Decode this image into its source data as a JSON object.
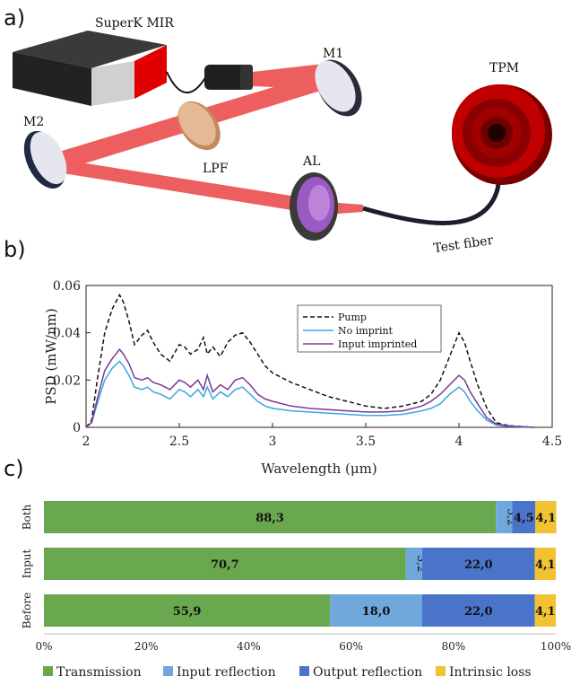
{
  "panel_a": {
    "letter": "a)",
    "labels": {
      "source": "SuperK MIR",
      "m1": "M1",
      "m2": "M2",
      "lpf": "LPF",
      "al": "AL",
      "tpm": "TPM",
      "fiber": "Test fiber"
    },
    "colors": {
      "beam": "#e82a2a",
      "source_body": "#2b2b2b",
      "source_red": "#e00000",
      "tpm": "#c00000"
    }
  },
  "panel_b": {
    "letter": "b)"
  },
  "panel_c": {
    "letter": "c)"
  },
  "chart_data": [
    {
      "type": "line",
      "xlabel": "Wavelength (μm)",
      "ylabel": "PSD (mW/nm)",
      "xlim": [
        2,
        4.5
      ],
      "ylim": [
        0,
        0.06
      ],
      "xticks": [
        "2",
        "2.5",
        "3",
        "3.5",
        "4",
        "4.5"
      ],
      "yticks": [
        "0",
        "0.02",
        "0.04",
        "0.06"
      ],
      "legend_position": "upper-middle",
      "series": [
        {
          "name": "Pump",
          "color": "#111111",
          "style": "dashed",
          "x": [
            2.0,
            2.03,
            2.06,
            2.1,
            2.14,
            2.18,
            2.2,
            2.23,
            2.26,
            2.3,
            2.33,
            2.36,
            2.4,
            2.45,
            2.5,
            2.53,
            2.56,
            2.6,
            2.63,
            2.65,
            2.68,
            2.72,
            2.76,
            2.8,
            2.84,
            2.88,
            2.92,
            2.96,
            3.0,
            3.1,
            3.2,
            3.3,
            3.4,
            3.5,
            3.6,
            3.7,
            3.8,
            3.85,
            3.9,
            3.95,
            4.0,
            4.03,
            4.06,
            4.1,
            4.15,
            4.2,
            4.25,
            4.3,
            4.4
          ],
          "y": [
            0.0,
            0.003,
            0.02,
            0.04,
            0.05,
            0.056,
            0.053,
            0.045,
            0.035,
            0.039,
            0.041,
            0.036,
            0.031,
            0.028,
            0.035,
            0.034,
            0.031,
            0.033,
            0.038,
            0.031,
            0.034,
            0.03,
            0.036,
            0.039,
            0.04,
            0.036,
            0.031,
            0.026,
            0.023,
            0.019,
            0.016,
            0.013,
            0.011,
            0.009,
            0.008,
            0.009,
            0.011,
            0.014,
            0.02,
            0.03,
            0.04,
            0.036,
            0.028,
            0.018,
            0.008,
            0.002,
            0.001,
            0.0005,
            0.0
          ]
        },
        {
          "name": "No imprint",
          "color": "#3aa7e0",
          "style": "solid",
          "x": [
            2.0,
            2.03,
            2.06,
            2.1,
            2.14,
            2.18,
            2.2,
            2.23,
            2.26,
            2.3,
            2.33,
            2.36,
            2.4,
            2.45,
            2.5,
            2.53,
            2.56,
            2.6,
            2.63,
            2.65,
            2.68,
            2.72,
            2.76,
            2.8,
            2.84,
            2.88,
            2.92,
            2.96,
            3.0,
            3.1,
            3.2,
            3.3,
            3.4,
            3.5,
            3.6,
            3.7,
            3.8,
            3.85,
            3.9,
            3.95,
            4.0,
            4.03,
            4.06,
            4.1,
            4.15,
            4.2,
            4.25,
            4.3,
            4.4
          ],
          "y": [
            0.0,
            0.002,
            0.01,
            0.02,
            0.025,
            0.028,
            0.026,
            0.022,
            0.017,
            0.016,
            0.017,
            0.015,
            0.014,
            0.012,
            0.016,
            0.015,
            0.013,
            0.016,
            0.013,
            0.017,
            0.012,
            0.015,
            0.013,
            0.016,
            0.017,
            0.014,
            0.011,
            0.009,
            0.008,
            0.007,
            0.0065,
            0.006,
            0.0055,
            0.005,
            0.005,
            0.0055,
            0.007,
            0.008,
            0.01,
            0.014,
            0.017,
            0.015,
            0.011,
            0.007,
            0.003,
            0.001,
            0.0005,
            0.0003,
            0.0
          ]
        },
        {
          "name": "Input imprinted",
          "color": "#7b3a96",
          "style": "solid",
          "x": [
            2.0,
            2.03,
            2.06,
            2.1,
            2.14,
            2.18,
            2.2,
            2.23,
            2.26,
            2.3,
            2.33,
            2.36,
            2.4,
            2.45,
            2.5,
            2.53,
            2.56,
            2.6,
            2.63,
            2.65,
            2.68,
            2.72,
            2.76,
            2.8,
            2.84,
            2.88,
            2.92,
            2.96,
            3.0,
            3.1,
            3.2,
            3.3,
            3.4,
            3.5,
            3.6,
            3.7,
            3.8,
            3.85,
            3.9,
            3.95,
            4.0,
            4.03,
            4.06,
            4.1,
            4.15,
            4.2,
            4.25,
            4.3,
            4.4
          ],
          "y": [
            0.0,
            0.002,
            0.012,
            0.024,
            0.029,
            0.033,
            0.031,
            0.027,
            0.021,
            0.02,
            0.021,
            0.019,
            0.018,
            0.016,
            0.02,
            0.019,
            0.017,
            0.02,
            0.016,
            0.022,
            0.015,
            0.018,
            0.016,
            0.02,
            0.021,
            0.018,
            0.014,
            0.012,
            0.011,
            0.009,
            0.008,
            0.0075,
            0.007,
            0.0065,
            0.0065,
            0.007,
            0.009,
            0.011,
            0.014,
            0.018,
            0.022,
            0.02,
            0.015,
            0.01,
            0.004,
            0.0015,
            0.0008,
            0.0004,
            0.0
          ]
        }
      ]
    },
    {
      "type": "bar",
      "orientation": "horizontal",
      "stacked": true,
      "categories": [
        "Both",
        "Input",
        "Before"
      ],
      "xticks": [
        "0%",
        "20%",
        "40%",
        "60%",
        "80%",
        "100%"
      ],
      "xlim": [
        0,
        100
      ],
      "legend_position": "bottom",
      "series": [
        {
          "name": "Transmission",
          "color": "#6aa84f",
          "values": [
            88.3,
            70.7,
            55.9
          ],
          "labels": [
            "88,3",
            "70,7",
            "55,9"
          ]
        },
        {
          "name": "Input reflection",
          "color": "#6fa8dc",
          "values": [
            3.2,
            3.2,
            18.0
          ],
          "labels": [
            "3,2",
            "3,2",
            "18,0"
          ]
        },
        {
          "name": "Output reflection",
          "color": "#4a74c9",
          "values": [
            4.5,
            22.0,
            22.0
          ],
          "labels": [
            "4,5",
            "22,0",
            "22,0"
          ]
        },
        {
          "name": "Intrinsic loss",
          "color": "#f1c232",
          "values": [
            4.1,
            4.1,
            4.1
          ],
          "labels": [
            "4,1",
            "4,1",
            "4,1"
          ]
        }
      ]
    }
  ]
}
